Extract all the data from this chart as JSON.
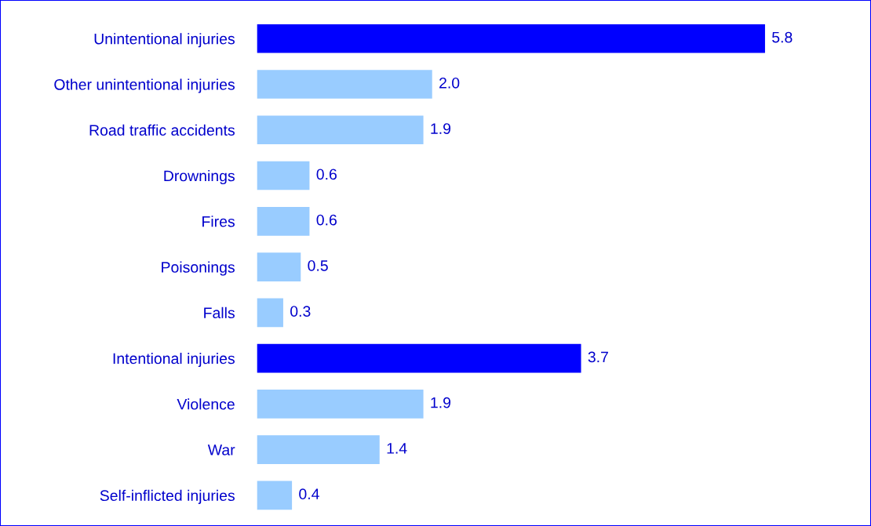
{
  "chart_data": {
    "type": "bar",
    "orientation": "horizontal",
    "categories": [
      "Unintentional injuries",
      "Other unintentional injuries",
      "Road traffic accidents",
      "Drownings",
      "Fires",
      "Poisonings",
      "Falls",
      "Intentional injuries",
      "Violence",
      "War",
      "Self-inflicted injuries"
    ],
    "values": [
      5.8,
      2.0,
      1.9,
      0.6,
      0.6,
      0.5,
      0.3,
      3.7,
      1.9,
      1.4,
      0.4
    ],
    "colors": [
      "#0000ff",
      "#99ccff",
      "#99ccff",
      "#99ccff",
      "#99ccff",
      "#99ccff",
      "#99ccff",
      "#0000ff",
      "#99ccff",
      "#99ccff",
      "#99ccff"
    ],
    "value_labels": [
      "5.8",
      "2.0",
      "1.9",
      "0.6",
      "0.6",
      "0.5",
      "0.3",
      "3.7",
      "1.9",
      "1.4",
      "0.4"
    ],
    "grid": false,
    "legend": false
  }
}
